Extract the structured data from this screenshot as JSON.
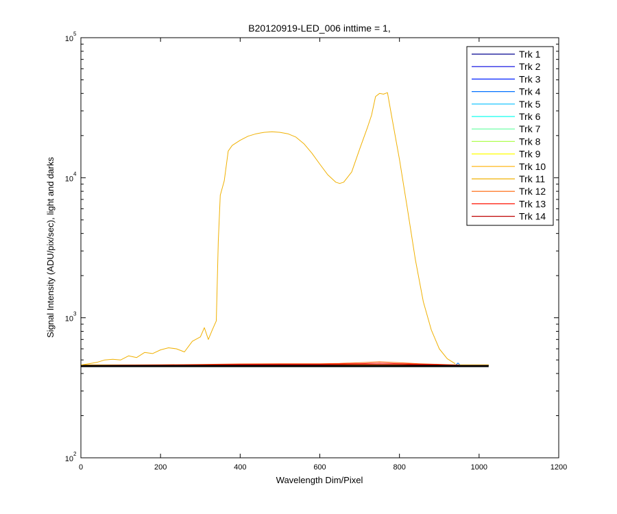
{
  "chart_data": {
    "type": "line",
    "title": "B20120919-LED_006 inttime = 1,",
    "xlabel": "Wavelength Dim/Pixel",
    "ylabel": "Signal Intensity (ADU/pix/sec), light and darks",
    "xlim": [
      0,
      1200
    ],
    "ylim": [
      100,
      100000
    ],
    "yscale": "log",
    "xticks": [
      0,
      200,
      400,
      600,
      800,
      1000,
      1200
    ],
    "yticks": [
      {
        "value": 100,
        "base": "10",
        "exp": "2"
      },
      {
        "value": 1000,
        "base": "10",
        "exp": "3"
      },
      {
        "value": 10000,
        "base": "10",
        "exp": "4"
      },
      {
        "value": 100000,
        "base": "10",
        "exp": "5"
      }
    ],
    "grid": false,
    "legend_position": "top-right",
    "series": [
      {
        "name": "Trk 1",
        "color": "#00008f",
        "x": [
          0,
          1024
        ],
        "y": [
          455,
          455
        ]
      },
      {
        "name": "Trk 2",
        "color": "#0000df",
        "x": [
          0,
          1024
        ],
        "y": [
          455,
          455
        ]
      },
      {
        "name": "Trk 3",
        "color": "#0020ff",
        "x": [
          0,
          1024
        ],
        "y": [
          456,
          456
        ]
      },
      {
        "name": "Trk 4",
        "color": "#0070ff",
        "x": [
          0,
          940,
          947,
          954,
          1024
        ],
        "y": [
          456,
          456,
          475,
          456,
          456
        ]
      },
      {
        "name": "Trk 5",
        "color": "#00bfff",
        "x": [
          0,
          1024
        ],
        "y": [
          457,
          457
        ]
      },
      {
        "name": "Trk 6",
        "color": "#10ffef",
        "x": [
          0,
          1024
        ],
        "y": [
          457,
          457
        ]
      },
      {
        "name": "Trk 7",
        "color": "#60ff9f",
        "x": [
          0,
          1024
        ],
        "y": [
          458,
          458
        ]
      },
      {
        "name": "Trk 8",
        "color": "#afff50",
        "x": [
          0,
          1024
        ],
        "y": [
          459,
          459
        ]
      },
      {
        "name": "Trk 9",
        "color": "#ffff00",
        "x": [
          0,
          1024
        ],
        "y": [
          460,
          460
        ]
      },
      {
        "name": "Trk 10",
        "color": "#ffaf00",
        "x": [
          0,
          1024
        ],
        "y": [
          461,
          461
        ]
      },
      {
        "name": "Trk 11",
        "color": "#f0b000",
        "x": [
          0,
          20,
          40,
          60,
          80,
          100,
          120,
          140,
          160,
          180,
          200,
          220,
          240,
          260,
          280,
          300,
          310,
          320,
          330,
          340,
          345,
          350,
          360,
          370,
          380,
          400,
          420,
          440,
          460,
          480,
          500,
          520,
          540,
          560,
          580,
          600,
          620,
          640,
          650,
          660,
          680,
          700,
          720,
          730,
          740,
          750,
          760,
          770,
          780,
          800,
          820,
          840,
          860,
          880,
          900,
          920,
          940
        ],
        "y": [
          460,
          470,
          480,
          500,
          505,
          500,
          535,
          520,
          565,
          555,
          590,
          610,
          600,
          570,
          680,
          730,
          850,
          700,
          820,
          950,
          3500,
          7500,
          9500,
          15500,
          17000,
          18500,
          19800,
          20600,
          21100,
          21300,
          21100,
          20600,
          19500,
          17500,
          15000,
          12500,
          10500,
          9300,
          9100,
          9300,
          11000,
          16000,
          23000,
          28000,
          38000,
          40000,
          39500,
          40500,
          28000,
          13500,
          6000,
          2600,
          1300,
          820,
          600,
          510,
          470
        ]
      },
      {
        "name": "Trk 12",
        "color": "#ff6000",
        "x": [
          0,
          100,
          200,
          300,
          400,
          500,
          600,
          650,
          700,
          750,
          800,
          850,
          900,
          950
        ],
        "y": [
          455,
          460,
          462,
          464,
          468,
          470,
          470,
          472,
          478,
          485,
          478,
          470,
          465,
          460
        ]
      },
      {
        "name": "Trk 13",
        "color": "#ff1000",
        "x": [
          0,
          100,
          200,
          300,
          400,
          500,
          600,
          700,
          750,
          800,
          900,
          950
        ],
        "y": [
          455,
          458,
          460,
          462,
          465,
          466,
          466,
          470,
          474,
          470,
          463,
          458
        ]
      },
      {
        "name": "Trk 14",
        "color": "#bf0000",
        "x": [
          0,
          100,
          200,
          300,
          400,
          500,
          600,
          700,
          800,
          900,
          950
        ],
        "y": [
          455,
          457,
          458,
          460,
          462,
          463,
          463,
          465,
          464,
          460,
          457
        ]
      }
    ],
    "dark_level": {
      "color": "#000000",
      "x": [
        0,
        1024
      ],
      "y": [
        452,
        452
      ]
    }
  }
}
